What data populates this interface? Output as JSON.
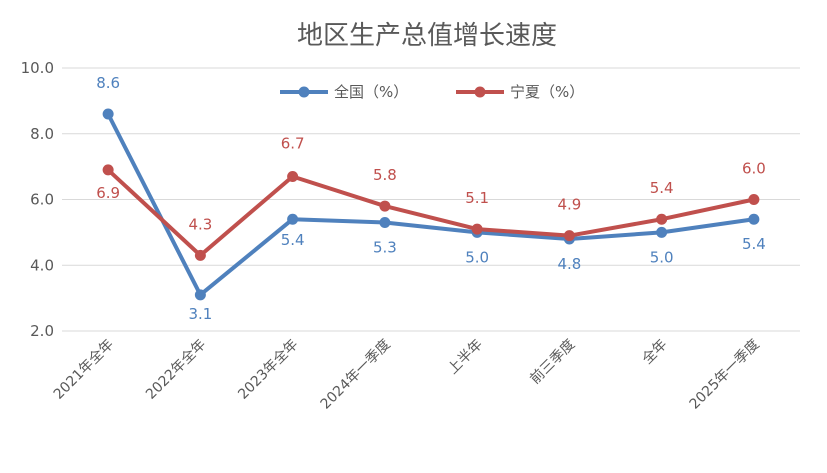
{
  "chart_data": {
    "type": "line",
    "title": "地区生产总值增长速度",
    "categories": [
      "2021年全年",
      "2022年全年",
      "2023年全年",
      "2024年一季度",
      "上半年",
      "前三季度",
      "全年",
      "2025年一季度"
    ],
    "ylim": [
      2.0,
      10.0
    ],
    "yticks": [
      "2.0",
      "4.0",
      "6.0",
      "8.0",
      "10.0"
    ],
    "grid": true,
    "legend_position": "top",
    "series": [
      {
        "name": "全国（%）",
        "color": "#4F81BD",
        "values": [
          8.6,
          3.1,
          5.4,
          5.3,
          5.0,
          4.8,
          5.0,
          5.4
        ],
        "labels": [
          "8.6",
          "3.1",
          "5.4",
          "5.3",
          "5.0",
          "4.8",
          "5.0",
          "5.4"
        ]
      },
      {
        "name": "宁夏（%）",
        "color": "#C0504D",
        "values": [
          6.9,
          4.3,
          6.7,
          5.8,
          5.1,
          4.9,
          5.4,
          6.0
        ],
        "labels": [
          "6.9",
          "4.3",
          "6.7",
          "5.8",
          "5.1",
          "4.9",
          "5.4",
          "6.0"
        ]
      }
    ]
  }
}
